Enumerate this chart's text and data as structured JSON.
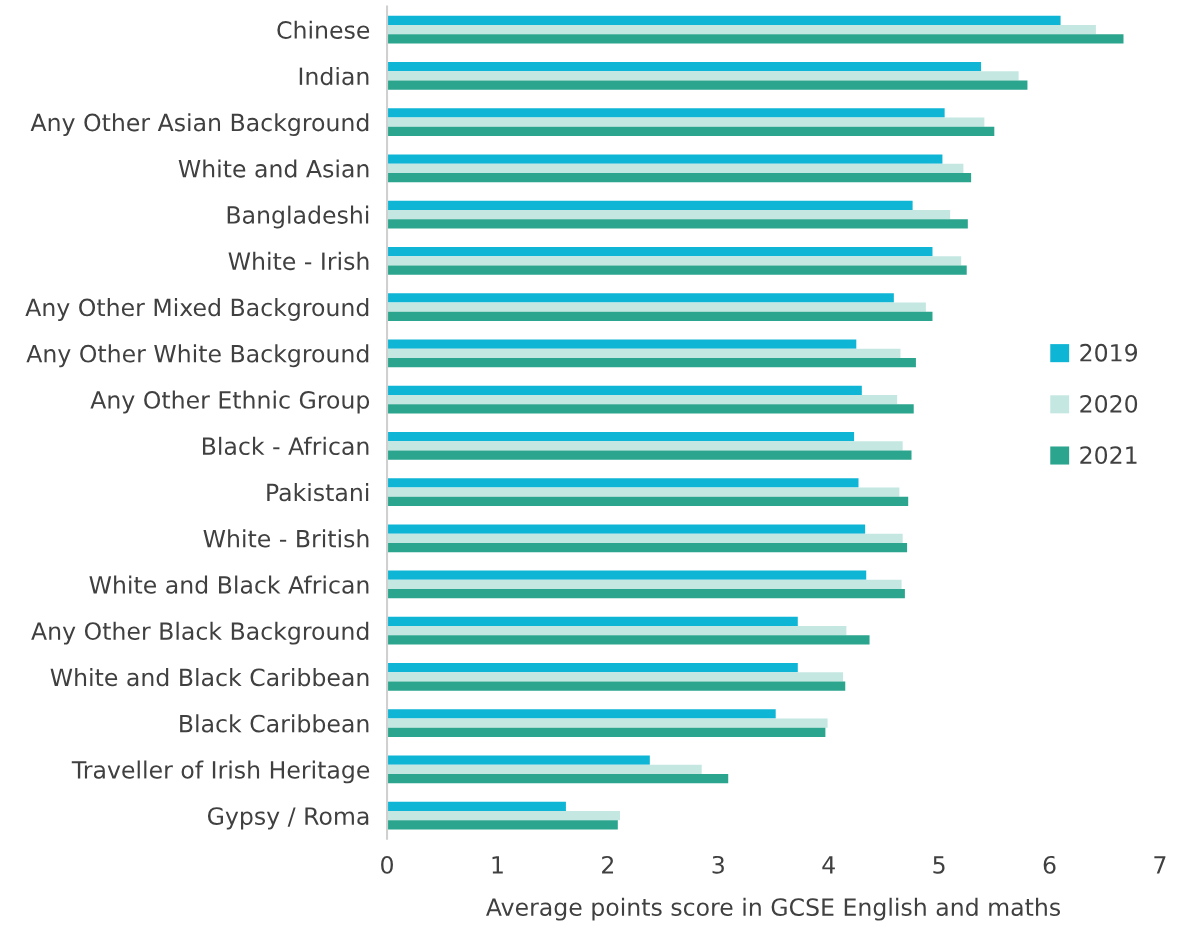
{
  "chart_data": {
    "type": "bar",
    "orientation": "horizontal",
    "xlabel": "Average points score in GCSE English and maths",
    "categories": [
      "Chinese",
      "Indian",
      "Any Other Asian Background",
      "White and Asian",
      "Bangladeshi",
      "White - Irish",
      "Any Other Mixed Background",
      "Any Other White Background",
      "Any Other Ethnic Group",
      "Black - African",
      "Pakistani",
      "White - British",
      "White and Black African",
      "Any Other Black Background",
      "White and Black Caribbean",
      "Black Caribbean",
      "Traveller of Irish Heritage",
      "Gypsy / Roma"
    ],
    "series": [
      {
        "name": "2019",
        "color": "#0fb5d5",
        "values": [
          6.1,
          5.38,
          5.05,
          5.03,
          4.76,
          4.94,
          4.59,
          4.25,
          4.3,
          4.23,
          4.27,
          4.33,
          4.34,
          3.72,
          3.72,
          3.52,
          2.38,
          1.62
        ]
      },
      {
        "name": "2020",
        "color": "#c4e7e1",
        "values": [
          6.42,
          5.72,
          5.41,
          5.22,
          5.1,
          5.2,
          4.88,
          4.65,
          4.62,
          4.67,
          4.64,
          4.67,
          4.66,
          4.16,
          4.13,
          3.99,
          2.85,
          2.11
        ]
      },
      {
        "name": "2021",
        "color": "#2ba58e",
        "values": [
          6.67,
          5.8,
          5.5,
          5.29,
          5.26,
          5.25,
          4.94,
          4.79,
          4.77,
          4.75,
          4.72,
          4.71,
          4.69,
          4.37,
          4.15,
          3.97,
          3.09,
          2.09
        ]
      }
    ],
    "xlim": [
      0,
      7
    ],
    "xticks": [
      0,
      1,
      2,
      3,
      4,
      5,
      6,
      7
    ],
    "grid": false,
    "legend": "right"
  }
}
